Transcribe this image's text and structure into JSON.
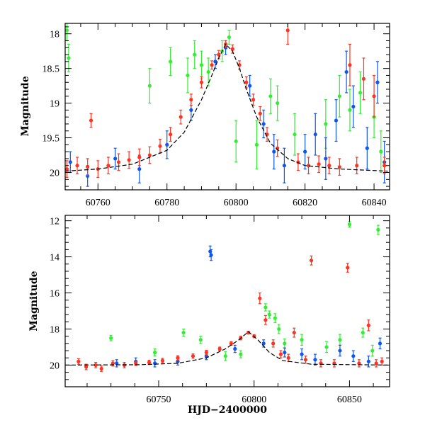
{
  "colors": {
    "green": "#33ee33",
    "blue": "#1155ee",
    "red": "#ff3322",
    "model": "#000000"
  },
  "chart_data": [
    {
      "type": "scatter",
      "title": "",
      "xlabel": "",
      "ylabel": "Magnitude",
      "xlim": [
        60750.5,
        60844.5
      ],
      "ylim": [
        20.25,
        17.85
      ],
      "y_inverted": true,
      "xticks_major": [
        60760,
        60780,
        60800,
        60820,
        60840
      ],
      "xtick_labels": [
        "60760",
        "60780",
        "60800",
        "60820",
        "60840"
      ],
      "yticks_major": [
        18,
        18.5,
        19,
        19.5,
        20
      ],
      "ytick_labels": [
        "18",
        "18.5",
        "19",
        "19.5",
        "20"
      ],
      "grid": false,
      "legend": "none",
      "model_curve": {
        "x": [
          60750,
          60760,
          60770,
          60780,
          60785,
          60790,
          60793,
          60795,
          60797,
          60799,
          60801,
          60803,
          60806,
          60810,
          60815,
          60820,
          60830,
          60844
        ],
        "y": [
          19.98,
          19.95,
          19.88,
          19.68,
          19.42,
          18.95,
          18.6,
          18.35,
          18.15,
          18.25,
          18.5,
          18.8,
          19.2,
          19.58,
          19.8,
          19.9,
          19.95,
          19.98
        ]
      },
      "series": [
        {
          "color": "green",
          "x": [
            60751,
            60751.5,
            60775,
            60781,
            60786,
            60788,
            60790,
            60792,
            60796,
            60798,
            60800,
            60806,
            60810,
            60812,
            60817,
            60826,
            60830,
            60833,
            60836,
            60840,
            60842
          ],
          "y": [
            17.95,
            18.35,
            18.75,
            18.4,
            18.6,
            18.3,
            18.45,
            18.55,
            18.25,
            18.05,
            19.55,
            19.6,
            18.9,
            19.0,
            19.45,
            19.3,
            18.9,
            19.1,
            18.85,
            19.2,
            19.7
          ],
          "err": [
            0.15,
            0.2,
            0.25,
            0.2,
            0.25,
            0.2,
            0.2,
            0.2,
            0.15,
            0.1,
            0.3,
            0.35,
            0.25,
            0.25,
            0.3,
            0.35,
            0.3,
            0.3,
            0.3,
            0.3,
            0.3
          ]
        },
        {
          "color": "blue",
          "x": [
            60752,
            60757,
            60765,
            60772,
            60780,
            60787,
            60794,
            60797,
            60804,
            60808,
            60811,
            60814,
            60820,
            60823,
            60826,
            60829,
            60832,
            60834,
            60838,
            60841,
            60843
          ],
          "y": [
            19.85,
            20.05,
            19.8,
            19.95,
            19.6,
            19.1,
            18.4,
            18.2,
            18.75,
            19.3,
            19.7,
            19.9,
            19.7,
            19.45,
            19.8,
            19.25,
            18.55,
            19.05,
            19.65,
            18.7,
            19.85
          ],
          "err": [
            0.15,
            0.15,
            0.15,
            0.2,
            0.2,
            0.15,
            0.1,
            0.1,
            0.15,
            0.2,
            0.25,
            0.25,
            0.25,
            0.3,
            0.3,
            0.3,
            0.3,
            0.3,
            0.3,
            0.3,
            0.3
          ]
        },
        {
          "color": "red",
          "x": [
            60751,
            60754,
            60757,
            60758,
            60760,
            60763,
            60766,
            60769,
            60772,
            60775,
            60778,
            60781,
            60784,
            60787,
            60790,
            60793,
            60795,
            60797,
            60799,
            60801,
            60803,
            60805,
            60807,
            60809,
            60812,
            60815,
            60818,
            60821,
            60824,
            60827,
            60830,
            60833,
            60835,
            60837,
            60840,
            60843
          ],
          "y": [
            19.95,
            19.9,
            19.92,
            19.25,
            19.95,
            19.9,
            19.85,
            19.82,
            19.78,
            19.75,
            19.62,
            19.45,
            19.2,
            18.95,
            18.7,
            18.45,
            18.3,
            18.15,
            18.22,
            18.45,
            18.7,
            18.95,
            19.15,
            19.45,
            19.65,
            17.95,
            19.85,
            19.9,
            19.88,
            19.9,
            19.92,
            18.45,
            19.9,
            18.65,
            18.9,
            19.9
          ],
          "err": [
            0.12,
            0.12,
            0.12,
            0.1,
            0.12,
            0.12,
            0.12,
            0.12,
            0.12,
            0.12,
            0.1,
            0.1,
            0.1,
            0.08,
            0.08,
            0.06,
            0.06,
            0.05,
            0.06,
            0.06,
            0.08,
            0.08,
            0.1,
            0.1,
            0.12,
            0.2,
            0.12,
            0.12,
            0.12,
            0.12,
            0.12,
            0.3,
            0.12,
            0.3,
            0.3,
            0.12
          ]
        }
      ]
    },
    {
      "type": "scatter",
      "title": "",
      "xlabel": "HJD−2400000",
      "ylabel": "Magnitude",
      "xlim": [
        60701,
        60871
      ],
      "ylim": [
        21.2,
        11.7
      ],
      "y_inverted": true,
      "xticks_major": [
        60750,
        60800,
        60850
      ],
      "xtick_labels": [
        "60750",
        "60800",
        "60850"
      ],
      "yticks_major": [
        12,
        14,
        16,
        18,
        20
      ],
      "ytick_labels": [
        "12",
        "14",
        "16",
        "18",
        "20"
      ],
      "grid": false,
      "legend": "none",
      "model_curve": {
        "x": [
          60701,
          60740,
          60760,
          60775,
          60785,
          60792,
          60797,
          60802,
          60808,
          60815,
          60830,
          60871
        ],
        "y": [
          20.0,
          19.98,
          19.9,
          19.6,
          19.1,
          18.6,
          18.15,
          18.6,
          19.3,
          19.75,
          19.95,
          20.0
        ]
      },
      "series": [
        {
          "color": "green",
          "x": [
            60725,
            60748,
            60763,
            60772,
            60785,
            60793,
            60806,
            60808,
            60811,
            60813,
            60816,
            60825,
            60838,
            60845,
            60850,
            60857,
            60862,
            60865
          ],
          "y": [
            18.5,
            19.3,
            18.2,
            18.6,
            19.5,
            19.4,
            16.8,
            17.2,
            17.4,
            18.0,
            18.8,
            18.6,
            19.0,
            18.6,
            12.2,
            18.2,
            19.2,
            12.5
          ],
          "err": [
            0.15,
            0.2,
            0.2,
            0.2,
            0.25,
            0.2,
            0.2,
            0.2,
            0.25,
            0.25,
            0.25,
            0.3,
            0.3,
            0.3,
            0.15,
            0.25,
            0.3,
            0.25
          ]
        },
        {
          "color": "blue",
          "x": [
            60728,
            60738,
            60748,
            60760,
            60775,
            60777,
            60777.5,
            60790,
            60805,
            60816,
            60825,
            60832,
            60845,
            60852,
            60860,
            60866
          ],
          "y": [
            19.9,
            19.8,
            19.9,
            19.8,
            19.5,
            13.7,
            13.9,
            19.1,
            18.8,
            19.3,
            19.4,
            19.7,
            19.2,
            19.5,
            19.8,
            18.8
          ],
          "err": [
            0.2,
            0.2,
            0.2,
            0.2,
            0.2,
            0.3,
            0.3,
            0.2,
            0.2,
            0.25,
            0.3,
            0.3,
            0.3,
            0.3,
            0.3,
            0.3
          ]
        },
        {
          "color": "red",
          "x": [
            60708,
            60712,
            60717,
            60720,
            60726,
            60732,
            60738,
            60745,
            60752,
            60760,
            60768,
            60775,
            60782,
            60788,
            60793,
            60797,
            60800,
            60803,
            60806,
            60810,
            60814,
            60818,
            60821,
            60827,
            60830,
            60835,
            60842,
            60849,
            60855,
            60860,
            60864,
            60867
          ],
          "y": [
            19.8,
            20.1,
            20.0,
            20.2,
            19.9,
            20.0,
            19.9,
            19.85,
            19.75,
            19.6,
            19.5,
            19.3,
            19.1,
            18.8,
            18.5,
            18.2,
            18.4,
            16.3,
            17.5,
            18.8,
            19.4,
            19.6,
            18.2,
            19.7,
            14.2,
            19.9,
            19.9,
            14.6,
            19.9,
            17.8,
            19.9,
            19.8
          ],
          "err": [
            0.15,
            0.15,
            0.15,
            0.15,
            0.15,
            0.15,
            0.12,
            0.12,
            0.12,
            0.12,
            0.12,
            0.12,
            0.1,
            0.1,
            0.1,
            0.08,
            0.08,
            0.3,
            0.25,
            0.2,
            0.2,
            0.2,
            0.25,
            0.2,
            0.25,
            0.2,
            0.2,
            0.25,
            0.2,
            0.3,
            0.2,
            0.2
          ]
        }
      ]
    }
  ]
}
